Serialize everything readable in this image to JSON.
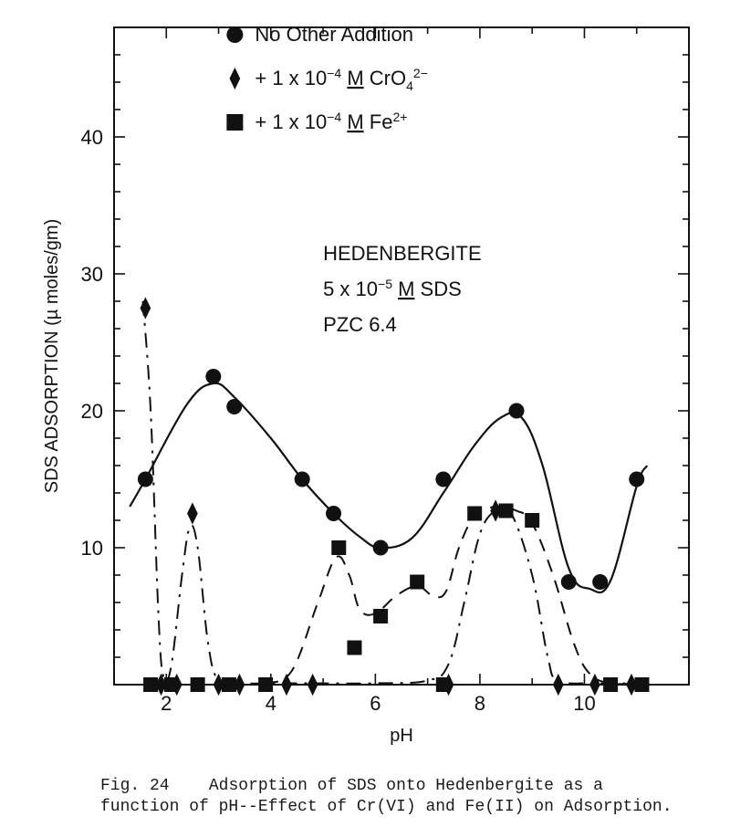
{
  "caption_prefix": "Fig. 24",
  "caption_body": "Adsorption of SDS onto Hedenbergite as a function of pH--Effect of Cr(VI) and Fe(II) on Adsorption.",
  "chart": {
    "type": "line+scatter",
    "background_color": "#ffffff",
    "axis_color": "#111111",
    "axis_linewidth": 2,
    "xlabel": "pH",
    "ylabel": "SDS ADSORPTION (µ moles/gm)",
    "label_fontsize": 20,
    "tick_fontsize": 22,
    "xlim": [
      1,
      12
    ],
    "ylim": [
      0,
      48
    ],
    "xticks_major": [
      2,
      4,
      6,
      8,
      10
    ],
    "yticks_major": [
      10,
      20,
      30,
      40
    ],
    "xticks_minor_step": 1,
    "yticks_minor_step": 2,
    "legend": {
      "x_ph": 3.8,
      "y_val": 47,
      "row_dy": 3.2,
      "items": [
        {
          "marker": "circle",
          "label_parts": [
            {
              "t": "No Other Addition"
            }
          ]
        },
        {
          "marker": "diamond",
          "label_parts": [
            {
              "t": "+ 1 x 10"
            },
            {
              "t": "−4",
              "dy": -8,
              "fs": 14
            },
            {
              "t": "   ",
              "dy": 8
            },
            {
              "t": "M",
              "u": true
            },
            {
              "t": "   CrO"
            },
            {
              "t": "4",
              "dy": 6,
              "fs": 14
            },
            {
              "t": "2−",
              "dy": -14,
              "fs": 14
            }
          ]
        },
        {
          "marker": "square",
          "label_parts": [
            {
              "t": "+ 1 x 10"
            },
            {
              "t": "−4",
              "dy": -8,
              "fs": 14
            },
            {
              "t": "   ",
              "dy": 8
            },
            {
              "t": "M",
              "u": true
            },
            {
              "t": "   Fe"
            },
            {
              "t": "2+",
              "dy": -8,
              "fs": 14
            }
          ]
        }
      ]
    },
    "annotation": {
      "x_ph": 5.0,
      "y_val": 31,
      "lines": [
        [
          {
            "t": "HEDENBERGITE"
          }
        ],
        [
          {
            "t": "5 x 10"
          },
          {
            "t": "−5",
            "dy": -8,
            "fs": 14
          },
          {
            "t": "   ",
            "dy": 8
          },
          {
            "t": "M",
            "u": true
          },
          {
            "t": "   SDS"
          }
        ],
        [
          {
            "t": "PZC 6.4"
          }
        ]
      ],
      "line_dy": 2.6
    },
    "series": [
      {
        "name": "No Other Addition",
        "marker": "circle",
        "marker_size": 8.5,
        "marker_fill": "#111111",
        "line_style": "solid",
        "line_width": 2.2,
        "line_color": "#111111",
        "points": [
          {
            "x": 1.6,
            "y": 15.0
          },
          {
            "x": 2.9,
            "y": 22.5
          },
          {
            "x": 3.3,
            "y": 20.3
          },
          {
            "x": 4.6,
            "y": 15.0
          },
          {
            "x": 5.2,
            "y": 12.5
          },
          {
            "x": 6.1,
            "y": 10.0
          },
          {
            "x": 7.3,
            "y": 15.0
          },
          {
            "x": 8.7,
            "y": 20.0
          },
          {
            "x": 9.7,
            "y": 7.5
          },
          {
            "x": 10.3,
            "y": 7.5
          },
          {
            "x": 11.0,
            "y": 15.0
          }
        ],
        "curve": [
          {
            "x": 1.3,
            "y": 13.0
          },
          {
            "x": 1.6,
            "y": 15.0
          },
          {
            "x": 2.4,
            "y": 20.5
          },
          {
            "x": 2.9,
            "y": 22.0
          },
          {
            "x": 3.3,
            "y": 21.0
          },
          {
            "x": 4.0,
            "y": 18.0
          },
          {
            "x": 4.6,
            "y": 15.0
          },
          {
            "x": 5.2,
            "y": 12.5
          },
          {
            "x": 5.7,
            "y": 10.8
          },
          {
            "x": 6.1,
            "y": 10.0
          },
          {
            "x": 6.7,
            "y": 10.7
          },
          {
            "x": 7.3,
            "y": 14.0
          },
          {
            "x": 7.9,
            "y": 17.5
          },
          {
            "x": 8.4,
            "y": 19.5
          },
          {
            "x": 8.8,
            "y": 19.5
          },
          {
            "x": 9.2,
            "y": 16.0
          },
          {
            "x": 9.7,
            "y": 8.5
          },
          {
            "x": 10.1,
            "y": 7.0
          },
          {
            "x": 10.5,
            "y": 7.6
          },
          {
            "x": 11.0,
            "y": 14.5
          },
          {
            "x": 11.2,
            "y": 16.0
          }
        ]
      },
      {
        "name": "+ CrO4",
        "marker": "diamond",
        "marker_size": 9,
        "marker_fill": "#111111",
        "line_style": "dashdot",
        "line_width": 2.0,
        "line_color": "#111111",
        "points": [
          {
            "x": 1.6,
            "y": 27.5
          },
          {
            "x": 1.9,
            "y": 0.0
          },
          {
            "x": 2.2,
            "y": 0.0
          },
          {
            "x": 2.5,
            "y": 12.5
          },
          {
            "x": 3.0,
            "y": 0.0
          },
          {
            "x": 3.4,
            "y": 0.0
          },
          {
            "x": 4.3,
            "y": 0.0
          },
          {
            "x": 4.8,
            "y": 0.0
          },
          {
            "x": 7.4,
            "y": 0.0
          },
          {
            "x": 8.3,
            "y": 12.7
          },
          {
            "x": 9.5,
            "y": 0.0
          },
          {
            "x": 10.2,
            "y": 0.0
          },
          {
            "x": 10.9,
            "y": 0.0
          }
        ],
        "curve": [
          {
            "x": 1.55,
            "y": 28.0
          },
          {
            "x": 1.7,
            "y": 20.0
          },
          {
            "x": 1.85,
            "y": 5.0
          },
          {
            "x": 1.95,
            "y": 0.5
          },
          {
            "x": 2.1,
            "y": 1.5
          },
          {
            "x": 2.3,
            "y": 8.0
          },
          {
            "x": 2.45,
            "y": 11.5
          },
          {
            "x": 2.6,
            "y": 10.0
          },
          {
            "x": 2.8,
            "y": 3.0
          },
          {
            "x": 3.0,
            "y": 0.3
          },
          {
            "x": 3.4,
            "y": 0.1
          },
          {
            "x": 4.3,
            "y": 0.1
          },
          {
            "x": 4.8,
            "y": 0.1
          },
          {
            "x": 6.0,
            "y": 0.1
          },
          {
            "x": 7.0,
            "y": 0.3
          },
          {
            "x": 7.4,
            "y": 1.5
          },
          {
            "x": 7.7,
            "y": 6.0
          },
          {
            "x": 8.0,
            "y": 11.0
          },
          {
            "x": 8.3,
            "y": 12.7
          },
          {
            "x": 8.6,
            "y": 12.5
          },
          {
            "x": 9.0,
            "y": 8.0
          },
          {
            "x": 9.3,
            "y": 2.0
          },
          {
            "x": 9.5,
            "y": 0.3
          },
          {
            "x": 10.2,
            "y": 0.1
          },
          {
            "x": 10.9,
            "y": 0.1
          }
        ]
      },
      {
        "name": "+ Fe2+",
        "marker": "square",
        "marker_size": 8,
        "marker_fill": "#111111",
        "line_style": "dash",
        "line_width": 2.0,
        "line_color": "#111111",
        "points": [
          {
            "x": 1.7,
            "y": 0.0
          },
          {
            "x": 2.1,
            "y": 0.0
          },
          {
            "x": 2.6,
            "y": 0.0
          },
          {
            "x": 3.2,
            "y": 0.0
          },
          {
            "x": 3.9,
            "y": 0.0
          },
          {
            "x": 5.3,
            "y": 10.0
          },
          {
            "x": 5.6,
            "y": 2.7
          },
          {
            "x": 6.1,
            "y": 5.0
          },
          {
            "x": 6.8,
            "y": 7.5
          },
          {
            "x": 7.3,
            "y": 0.0
          },
          {
            "x": 7.9,
            "y": 12.5
          },
          {
            "x": 8.5,
            "y": 12.7
          },
          {
            "x": 9.0,
            "y": 12.0
          },
          {
            "x": 10.5,
            "y": 0.0
          },
          {
            "x": 11.1,
            "y": 0.0
          }
        ],
        "curve": [
          {
            "x": 3.9,
            "y": 0.1
          },
          {
            "x": 4.4,
            "y": 1.0
          },
          {
            "x": 4.9,
            "y": 6.0
          },
          {
            "x": 5.25,
            "y": 9.3
          },
          {
            "x": 5.5,
            "y": 8.0
          },
          {
            "x": 5.7,
            "y": 5.5
          },
          {
            "x": 6.0,
            "y": 5.2
          },
          {
            "x": 6.4,
            "y": 6.5
          },
          {
            "x": 6.8,
            "y": 7.2
          },
          {
            "x": 7.1,
            "y": 6.5
          },
          {
            "x": 7.35,
            "y": 6.8
          },
          {
            "x": 7.6,
            "y": 10.0
          },
          {
            "x": 7.9,
            "y": 12.3
          },
          {
            "x": 8.3,
            "y": 13.0
          },
          {
            "x": 8.7,
            "y": 12.7
          },
          {
            "x": 9.0,
            "y": 11.8
          },
          {
            "x": 9.4,
            "y": 8.0
          },
          {
            "x": 9.8,
            "y": 3.0
          },
          {
            "x": 10.1,
            "y": 0.8
          },
          {
            "x": 10.5,
            "y": 0.1
          },
          {
            "x": 11.1,
            "y": 0.1
          }
        ]
      }
    ]
  }
}
